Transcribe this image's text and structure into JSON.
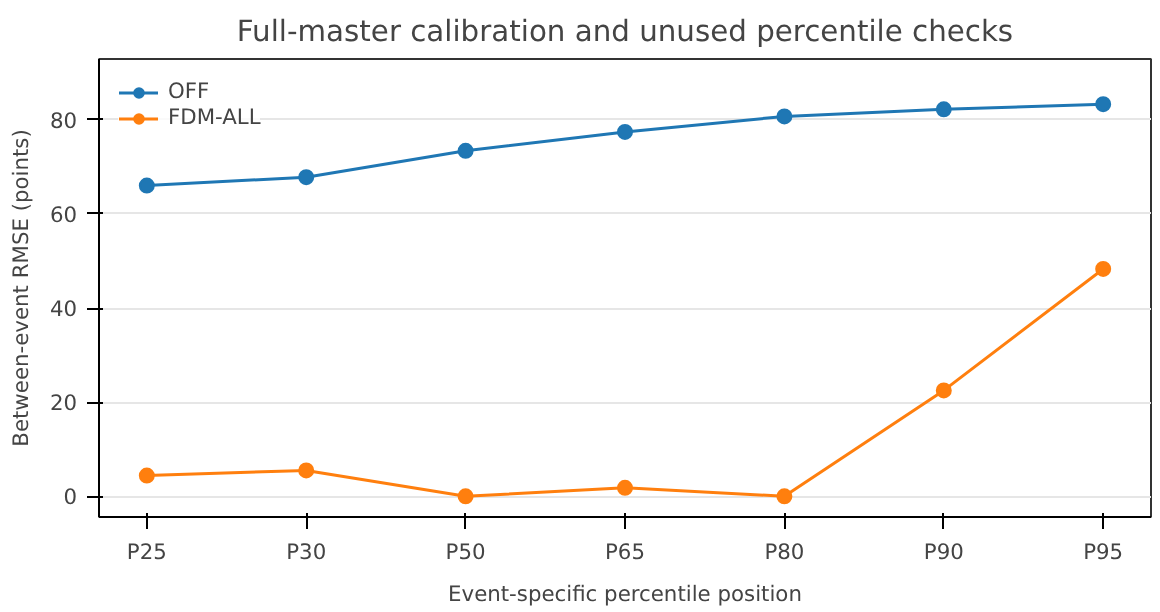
{
  "chart_data": {
    "type": "line",
    "title": "Full-master calibration and unused percentile checks",
    "xlabel": "Event-specific percentile position",
    "ylabel": "Between-event RMSE (points)",
    "categories": [
      "P25",
      "P30",
      "P50",
      "P65",
      "P80",
      "P90",
      "P95"
    ],
    "series": [
      {
        "name": "OFF",
        "color": "#1f77b4",
        "values": [
          66.0,
          67.8,
          73.4,
          77.4,
          80.7,
          82.2,
          83.3
        ]
      },
      {
        "name": "FDM-ALL",
        "color": "#ff7f0e",
        "values": [
          4.4,
          5.5,
          0.0,
          1.8,
          0.0,
          22.5,
          48.3
        ]
      }
    ],
    "ylim": [
      -4.4,
      92.9
    ],
    "yticks": [
      0,
      20,
      40,
      60,
      80
    ],
    "grid": "y",
    "legend": "top left",
    "marker": "circle",
    "line_style": "solid"
  }
}
